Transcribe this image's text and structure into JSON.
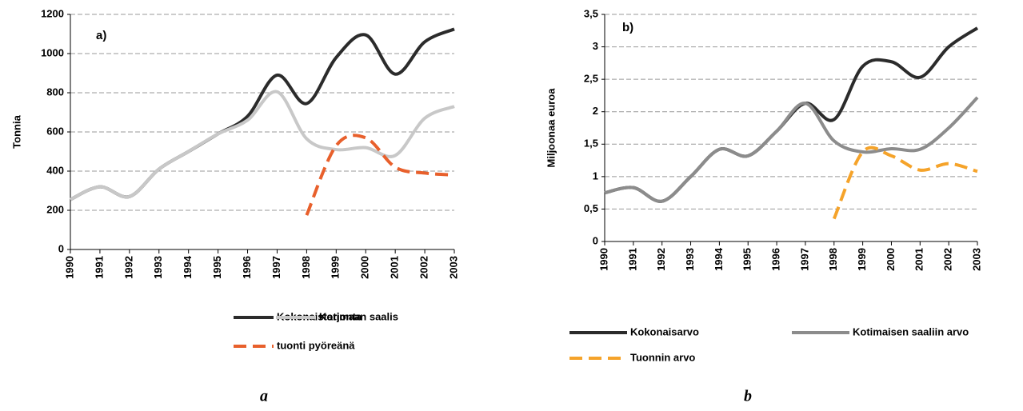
{
  "chart_data": [
    {
      "type": "line",
      "annotation": "a)",
      "ylabel": "Tonnia",
      "caption": "a",
      "categories": [
        "1990",
        "1991",
        "1992",
        "1993",
        "1994",
        "1995",
        "1996",
        "1997",
        "1998",
        "1999",
        "2000",
        "2001",
        "2002",
        "2003"
      ],
      "ylim": [
        0,
        1200
      ],
      "yticks": [
        0,
        200,
        400,
        600,
        800,
        1000,
        1200
      ],
      "grid": true,
      "series": [
        {
          "name": "Kokonaistarjonta",
          "color": "#2b2b2b",
          "line_style": "solid",
          "values": [
            255,
            320,
            270,
            410,
            500,
            590,
            680,
            890,
            745,
            980,
            1095,
            895,
            1060,
            1125
          ]
        },
        {
          "name": "Kotimaan saalis",
          "color": "#c8c8c8",
          "line_style": "solid",
          "values": [
            255,
            320,
            270,
            410,
            500,
            590,
            660,
            805,
            565,
            510,
            520,
            480,
            670,
            730
          ]
        },
        {
          "name": "tuonti pyöreänä",
          "color": "#e8602c",
          "line_style": "dashed",
          "values": [
            null,
            null,
            null,
            null,
            null,
            null,
            null,
            null,
            175,
            530,
            570,
            420,
            390,
            380
          ]
        }
      ]
    },
    {
      "type": "line",
      "annotation": "b)",
      "ylabel": "Miljoonaa euroa",
      "caption": "b",
      "categories": [
        "1990",
        "1991",
        "1992",
        "1993",
        "1994",
        "1995",
        "1996",
        "1997",
        "1998",
        "1999",
        "2000",
        "2001",
        "2002",
        "2003"
      ],
      "ylim": [
        0,
        3.5
      ],
      "yticks": [
        0,
        {
          "value": 0.5,
          "label": "0,5"
        },
        1,
        {
          "value": 1.5,
          "label": "1,5"
        },
        2,
        {
          "value": 2.5,
          "label": "2,5"
        },
        3,
        {
          "value": 3.5,
          "label": "3,5"
        }
      ],
      "grid": true,
      "series": [
        {
          "name": "Kokonaisarvo",
          "color": "#2b2b2b",
          "line_style": "solid",
          "values": [
            0.75,
            0.83,
            0.62,
            1.0,
            1.42,
            1.32,
            1.7,
            2.13,
            1.88,
            2.7,
            2.77,
            2.53,
            3.0,
            3.29
          ]
        },
        {
          "name": "Kotimaisen saaliin arvo",
          "color": "#8c8c8c",
          "line_style": "solid",
          "values": [
            0.75,
            0.83,
            0.62,
            1.0,
            1.42,
            1.32,
            1.7,
            2.13,
            1.55,
            1.38,
            1.43,
            1.42,
            1.75,
            2.22
          ]
        },
        {
          "name": "Tuonnin arvo",
          "color": "#f5a32a",
          "line_style": "dashed",
          "values": [
            null,
            null,
            null,
            null,
            null,
            null,
            null,
            null,
            0.35,
            1.38,
            1.32,
            1.1,
            1.2,
            1.08
          ]
        }
      ]
    }
  ]
}
